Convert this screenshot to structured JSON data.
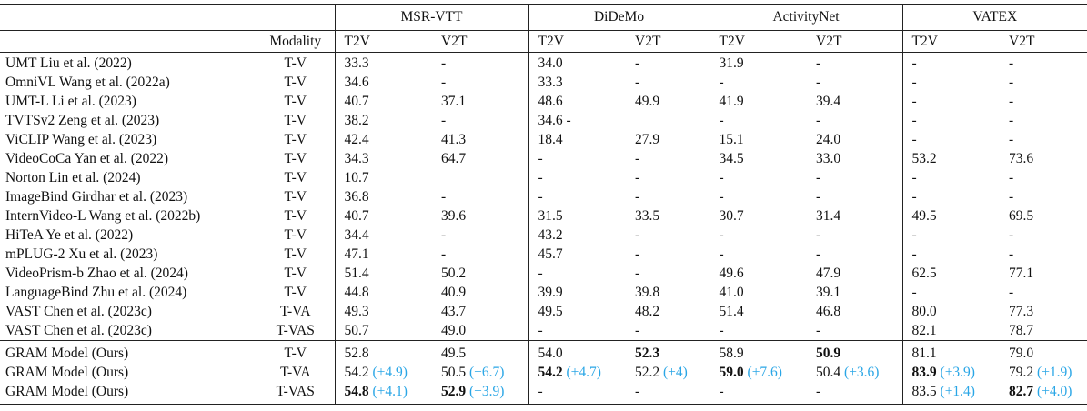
{
  "table": {
    "groups": [
      "MSR-VTT",
      "DiDeMo",
      "ActivityNet",
      "VATEX"
    ],
    "modality_header": "Modality",
    "subheaders": [
      "T2V",
      "V2T",
      "T2V",
      "V2T",
      "T2V",
      "V2T",
      "T2V",
      "V2T"
    ],
    "rows": [
      [
        "UMT Liu et al. (2022)",
        "T-V",
        "33.3",
        "-",
        "34.0",
        "-",
        "31.9",
        "-",
        "-",
        "-"
      ],
      [
        "OmniVL Wang et al. (2022a)",
        "T-V",
        "34.6",
        "-",
        "33.3",
        "-",
        "-",
        "-",
        "-",
        "-"
      ],
      [
        "UMT-L Li et al. (2023)",
        "T-V",
        "40.7",
        "37.1",
        "48.6",
        "49.9",
        "41.9",
        "39.4",
        "-",
        "-"
      ],
      [
        "TVTSv2 Zeng et al. (2023)",
        "T-V",
        "38.2",
        "-",
        "34.6 -",
        null,
        "-",
        "-",
        "-",
        "-"
      ],
      [
        "ViCLIP Wang et al. (2023)",
        "T-V",
        "42.4",
        "41.3",
        "18.4",
        "27.9",
        "15.1",
        "24.0",
        "-",
        "-"
      ],
      [
        "VideoCoCa Yan et al. (2022)",
        "T-V",
        "34.3",
        "64.7",
        "-",
        "-",
        "34.5",
        "33.0",
        "53.2",
        "73.6"
      ],
      [
        "Norton Lin et al. (2024)",
        "T-V",
        "10.7",
        null,
        "-",
        "-",
        "-",
        "-",
        "-",
        "-"
      ],
      [
        "ImageBind Girdhar et al. (2023)",
        "T-V",
        "36.8",
        "-",
        "-",
        "-",
        "-",
        "-",
        "-",
        "-"
      ],
      [
        "InternVideo-L Wang et al. (2022b)",
        "T-V",
        "40.7",
        "39.6",
        "31.5",
        "33.5",
        "30.7",
        "31.4",
        "49.5",
        "69.5"
      ],
      [
        "HiTeA Ye et al. (2022)",
        "T-V",
        "34.4",
        "-",
        "43.2",
        "-",
        "-",
        "-",
        "-",
        "-"
      ],
      [
        "mPLUG-2 Xu et al. (2023)",
        "T-V",
        "47.1",
        "-",
        "45.7",
        "-",
        "-",
        "-",
        "-",
        "-"
      ],
      [
        "VideoPrism-b Zhao et al. (2024)",
        "T-V",
        "51.4",
        "50.2",
        "-",
        "-",
        "49.6",
        "47.9",
        "62.5",
        "77.1"
      ],
      [
        "LanguageBind Zhu et al. (2024)",
        "T-V",
        "44.8",
        "40.9",
        "39.9",
        "39.8",
        "41.0",
        "39.1",
        "-",
        "-"
      ],
      [
        "VAST Chen et al. (2023c)",
        "T-VA",
        "49.3",
        "43.7",
        "49.5",
        "48.2",
        "51.4",
        "46.8",
        "80.0",
        "77.3"
      ],
      [
        "VAST Chen et al. (2023c)",
        "T-VAS",
        "50.7",
        "49.0",
        "-",
        "-",
        "-",
        "-",
        "82.1",
        "78.7"
      ]
    ],
    "ours": [
      [
        "GRAM Model (Ours)",
        "T-V",
        "52.8",
        "49.5",
        "54.0",
        {
          "text": "52.3",
          "bold": true
        },
        "58.9",
        {
          "text": "50.9",
          "bold": true
        },
        "81.1",
        "79.0"
      ],
      [
        "GRAM Model (Ours)",
        "T-VA",
        {
          "text": "54.2",
          "delta": "(+4.9)"
        },
        {
          "text": "50.5",
          "delta": "(+6.7)"
        },
        {
          "text": "54.2",
          "bold": true,
          "delta": "(+4.7)"
        },
        {
          "text": "52.2",
          "delta": "(+4)"
        },
        {
          "text": "59.0",
          "bold": true,
          "delta": "(+7.6)"
        },
        {
          "text": "50.4",
          "delta": "(+3.6)"
        },
        {
          "text": "83.9",
          "bold": true,
          "delta": "(+3.9)"
        },
        {
          "text": "79.2",
          "delta": "(+1.9)"
        }
      ],
      [
        "GRAM Model (Ours)",
        "T-VAS",
        {
          "text": "54.8",
          "bold": true,
          "delta": "(+4.1)"
        },
        {
          "text": "52.9",
          "bold": true,
          "delta": "(+3.9)"
        },
        "-",
        "-",
        "-",
        "-",
        {
          "text": "83.5",
          "delta": "(+1.4)"
        },
        {
          "text": "82.7",
          "bold": true,
          "delta": "(+4.0)"
        }
      ]
    ]
  }
}
